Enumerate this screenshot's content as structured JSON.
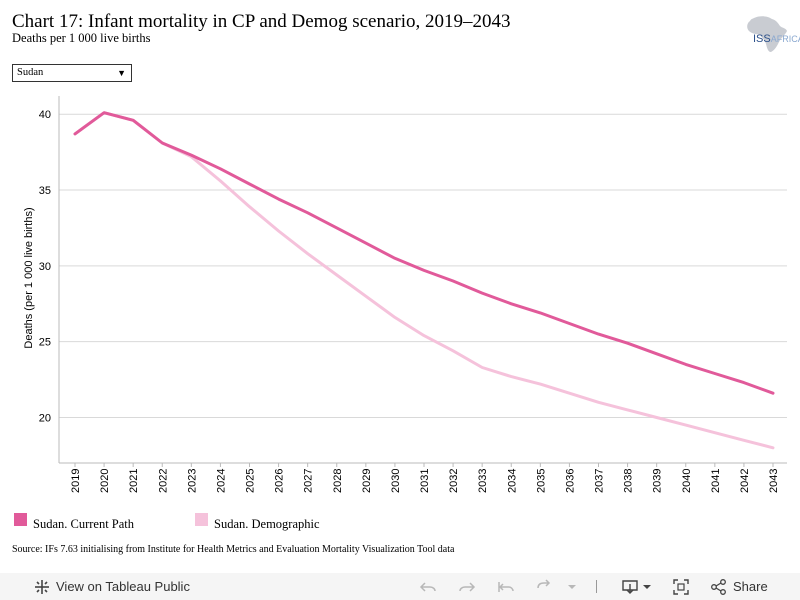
{
  "header": {
    "title": "Chart 17: Infant mortality in CP and Demog scenario, 2019–2043",
    "subtitle": "Deaths per 1 000 live births"
  },
  "logo": {
    "text_main": "ISS",
    "text_sub": "AFRICA"
  },
  "filter": {
    "selected": "Sudan"
  },
  "chart_data": {
    "type": "line",
    "ylabel": "Deaths (per 1 000 live births)",
    "ylim": [
      17,
      41.2
    ],
    "yticks": [
      20,
      25,
      30,
      35,
      40
    ],
    "x": [
      "2019",
      "2020",
      "2021",
      "2022",
      "2023",
      "2024",
      "2025",
      "2026",
      "2027",
      "2028",
      "2029",
      "2030",
      "2031",
      "2032",
      "2033",
      "2034",
      "2035",
      "2036",
      "2037",
      "2038",
      "2039",
      "2040",
      "2041",
      "2042",
      "2043"
    ],
    "grid": true,
    "legend_position": "bottom",
    "series": [
      {
        "name": "Sudan. Current Path",
        "color": "#e15a9a",
        "values": [
          38.7,
          40.1,
          39.6,
          38.1,
          37.3,
          36.4,
          35.4,
          34.4,
          33.5,
          32.5,
          31.5,
          30.5,
          29.7,
          29.0,
          28.2,
          27.5,
          26.9,
          26.2,
          25.5,
          24.9,
          24.2,
          23.5,
          22.9,
          22.3,
          21.6
        ]
      },
      {
        "name": "Sudan. Demographic",
        "color": "#f5c2db",
        "values": [
          38.7,
          40.1,
          39.6,
          38.1,
          37.2,
          35.6,
          33.9,
          32.3,
          30.8,
          29.4,
          28.0,
          26.6,
          25.4,
          24.4,
          23.3,
          22.7,
          22.2,
          21.6,
          21.0,
          20.5,
          20.0,
          19.5,
          19.0,
          18.5,
          18.0
        ]
      }
    ]
  },
  "source": "Source: IFs 7.63 initialising from Institute for Health Metrics and Evaluation Mortality Visualization Tool data",
  "toolbar": {
    "view_label": "View on Tableau Public",
    "share_label": "Share"
  }
}
